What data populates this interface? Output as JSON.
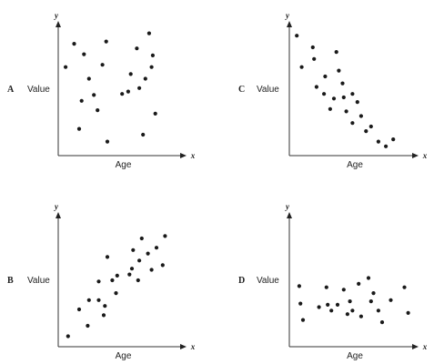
{
  "chart_data": [
    {
      "type": "scatter",
      "panel": "A",
      "xlabel": "Age",
      "ylabel": "Value",
      "x_axis_letter": "x",
      "y_axis_letter": "y",
      "xlim": [
        0,
        10
      ],
      "ylim": [
        0,
        10
      ],
      "grid": false,
      "x": [
        0.6,
        1.3,
        1.7,
        1.9,
        2.1,
        2.5,
        2.9,
        3.2,
        3.6,
        3.9,
        4.0,
        5.2,
        5.7,
        5.9,
        6.4,
        6.6,
        6.9,
        7.1,
        7.4,
        7.6,
        7.7,
        7.9
      ],
      "y": [
        7.6,
        9.6,
        2.3,
        4.7,
        8.7,
        6.6,
        5.2,
        3.9,
        7.8,
        9.8,
        1.2,
        5.3,
        5.5,
        7.0,
        9.2,
        5.8,
        1.8,
        6.6,
        10.5,
        7.6,
        8.6,
        3.6
      ]
    },
    {
      "type": "scatter",
      "panel": "B",
      "xlabel": "Age",
      "ylabel": "Value",
      "x_axis_letter": "x",
      "y_axis_letter": "y",
      "xlim": [
        0,
        10
      ],
      "ylim": [
        0,
        10
      ],
      "grid": false,
      "x": [
        0.8,
        1.7,
        2.4,
        2.5,
        3.3,
        3.3,
        3.7,
        3.8,
        4.0,
        4.4,
        4.7,
        4.8,
        5.8,
        6.0,
        6.1,
        6.5,
        6.6,
        6.8,
        7.3,
        7.6,
        8.0,
        8.5,
        8.7
      ],
      "y": [
        0.9,
        3.2,
        1.8,
        4.0,
        5.6,
        4.0,
        2.7,
        3.5,
        7.7,
        5.7,
        4.6,
        6.1,
        6.2,
        6.7,
        8.3,
        5.7,
        7.4,
        9.3,
        8.0,
        6.6,
        8.5,
        7.0,
        9.5
      ]
    },
    {
      "type": "scatter",
      "panel": "C",
      "xlabel": "Age",
      "ylabel": "Value",
      "x_axis_letter": "x",
      "y_axis_letter": "y",
      "xlim": [
        0,
        10
      ],
      "ylim": [
        0,
        10
      ],
      "grid": false,
      "x": [
        0.6,
        1.0,
        1.9,
        2.0,
        2.2,
        2.8,
        2.9,
        3.3,
        3.6,
        3.8,
        4.0,
        4.3,
        4.4,
        4.6,
        5.1,
        5.1,
        5.5,
        5.8,
        6.2,
        6.6,
        7.2,
        7.8,
        8.4
      ],
      "y": [
        10.3,
        7.6,
        9.3,
        8.3,
        5.9,
        5.3,
        6.8,
        4.0,
        4.9,
        8.9,
        7.3,
        6.2,
        5.0,
        3.8,
        5.3,
        2.8,
        4.6,
        3.4,
        2.1,
        2.5,
        1.2,
        0.8,
        1.4
      ]
    },
    {
      "type": "scatter",
      "panel": "D",
      "xlabel": "Age",
      "ylabel": "Value",
      "x_axis_letter": "x",
      "y_axis_letter": "y",
      "xlim": [
        0,
        10
      ],
      "ylim": [
        0,
        10
      ],
      "grid": false,
      "x": [
        0.8,
        0.9,
        1.1,
        2.4,
        3.0,
        3.1,
        3.4,
        3.9,
        4.4,
        4.7,
        4.9,
        5.1,
        5.6,
        5.8,
        6.4,
        6.6,
        6.8,
        7.2,
        7.5,
        8.2,
        9.3,
        9.6
      ],
      "y": [
        5.2,
        3.7,
        2.3,
        3.4,
        5.1,
        3.6,
        3.1,
        3.6,
        4.9,
        2.8,
        3.9,
        3.1,
        5.4,
        2.6,
        5.9,
        3.9,
        4.6,
        3.1,
        2.1,
        4.0,
        5.1,
        2.9
      ]
    }
  ]
}
